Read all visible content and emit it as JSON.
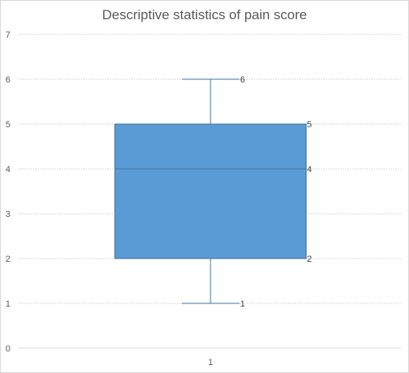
{
  "chart_data": {
    "type": "box",
    "title": "Descriptive statistics of pain score",
    "categories": [
      "1"
    ],
    "series": [
      {
        "min": 1,
        "q1": 2,
        "median": 4,
        "q3": 5,
        "max": 6
      }
    ],
    "ylim": [
      0,
      7
    ],
    "yticks": [
      "0",
      "1",
      "2",
      "3",
      "4",
      "5",
      "6",
      "7"
    ],
    "data_labels": [
      "6",
      "5",
      "4",
      "2",
      "1"
    ],
    "grid": "horizontal",
    "legend": "none",
    "colors": {
      "box_fill": "#5b9bd5",
      "box_stroke": "#41719c",
      "whisker": "#41719c",
      "grid": "#d9d9d9",
      "axis": "#d9d9d9"
    }
  }
}
